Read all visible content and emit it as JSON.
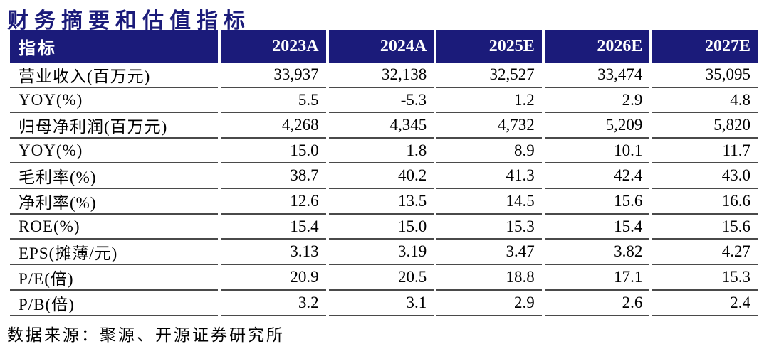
{
  "title": "财务摘要和估值指标",
  "source": "数据来源：聚源、开源证券研究所",
  "colors": {
    "header_bg": "#1B1B7A",
    "header_text": "#FFFFFF",
    "title_text": "#1B1B7A",
    "row_divider": "#4A4A4A",
    "body_text": "#000000",
    "background": "#FFFFFF"
  },
  "chart_data": {
    "type": "table",
    "columns": [
      "指标",
      "2023A",
      "2024A",
      "2025E",
      "2026E",
      "2027E"
    ],
    "rows": [
      {
        "label": "营业收入(百万元)",
        "values": [
          "33,937",
          "32,138",
          "32,527",
          "33,474",
          "35,095"
        ]
      },
      {
        "label": "YOY(%)",
        "values": [
          "5.5",
          "-5.3",
          "1.2",
          "2.9",
          "4.8"
        ]
      },
      {
        "label": "归母净利润(百万元)",
        "values": [
          "4,268",
          "4,345",
          "4,732",
          "5,209",
          "5,820"
        ]
      },
      {
        "label": "YOY(%)",
        "values": [
          "15.0",
          "1.8",
          "8.9",
          "10.1",
          "11.7"
        ]
      },
      {
        "label": "毛利率(%)",
        "values": [
          "38.7",
          "40.2",
          "41.3",
          "42.4",
          "43.0"
        ]
      },
      {
        "label": "净利率(%)",
        "values": [
          "12.6",
          "13.5",
          "14.5",
          "15.6",
          "16.6"
        ]
      },
      {
        "label": "ROE(%)",
        "values": [
          "15.4",
          "15.0",
          "15.3",
          "15.4",
          "15.6"
        ]
      },
      {
        "label": "EPS(摊薄/元)",
        "values": [
          "3.13",
          "3.19",
          "3.47",
          "3.82",
          "4.27"
        ]
      },
      {
        "label": "P/E(倍)",
        "values": [
          "20.9",
          "20.5",
          "18.8",
          "17.1",
          "15.3"
        ]
      },
      {
        "label": "P/B(倍)",
        "values": [
          "3.2",
          "3.1",
          "2.9",
          "2.6",
          "2.4"
        ]
      }
    ]
  }
}
